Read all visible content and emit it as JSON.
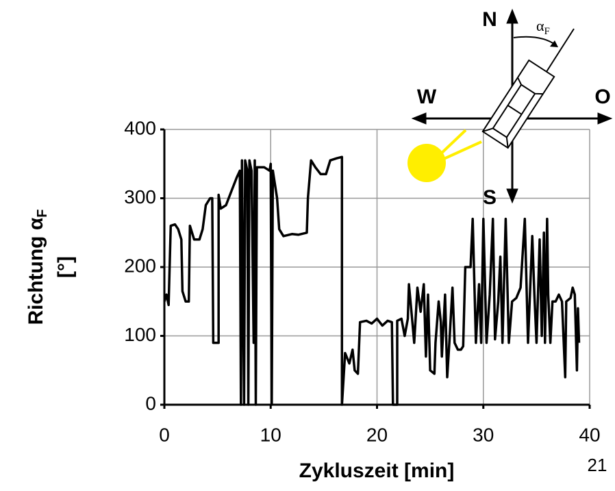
{
  "chart_data": {
    "type": "line",
    "ylabel": "Richtung α",
    "ylabel_sub": "F",
    "ylabel_unit": "[°]",
    "xlabel": "Zykluszeit [min]",
    "page_number": "21",
    "compass": {
      "north": "N",
      "west": "W",
      "east": "O",
      "south": "S",
      "angle": "α",
      "angle_sub": "F"
    },
    "color": "#000000",
    "grid": true,
    "xlim": [
      0,
      40
    ],
    "xticks": [
      0,
      10,
      20,
      30,
      40
    ],
    "ylim": [
      0,
      400
    ],
    "yticks": [
      0,
      100,
      200,
      300,
      400
    ],
    "x": [
      0,
      0.2,
      0.4,
      0.6,
      1.0,
      1.3,
      1.6,
      1.7,
      2.0,
      2.3,
      2.4,
      2.8,
      3.3,
      3.6,
      3.9,
      4.3,
      4.5,
      4.6,
      5.1,
      5.1,
      5.3,
      5.8,
      6.3,
      6.8,
      7.1,
      7.2,
      7.3,
      7.5,
      7.6,
      7.8,
      7.9,
      8.0,
      8.2,
      8.4,
      8.5,
      8.6,
      8.7,
      9.4,
      9.9,
      10.0,
      10.1,
      10.2,
      10.6,
      10.8,
      11.2,
      12.0,
      12.6,
      13.4,
      13.5,
      13.8,
      14.2,
      14.7,
      15.2,
      15.6,
      16.2,
      16.7,
      16.7,
      17.0,
      17.4,
      17.7,
      17.9,
      18.2,
      18.4,
      19.0,
      19.5,
      20.0,
      20.5,
      21.0,
      21.4,
      21.5,
      21.9,
      21.9,
      22.3,
      22.6,
      22.9,
      23.0,
      23.3,
      23.5,
      23.8,
      24.1,
      24.4,
      24.6,
      24.8,
      25.0,
      25.4,
      25.5,
      25.8,
      26.0,
      26.1,
      26.4,
      26.6,
      26.8,
      27.1,
      27.3,
      27.6,
      27.9,
      28.1,
      28.3,
      28.8,
      29.0,
      29.3,
      29.6,
      29.8,
      30.0,
      30.3,
      30.6,
      30.9,
      31.1,
      31.4,
      31.6,
      31.8,
      32.1,
      32.4,
      32.7,
      33.1,
      33.5,
      33.9,
      34.2,
      34.6,
      34.8,
      35.0,
      35.3,
      35.5,
      35.7,
      35.8,
      36.0,
      36.1,
      36.3,
      36.5,
      36.8,
      37.1,
      37.4,
      37.7,
      37.8,
      38.2,
      38.4,
      38.6,
      38.8,
      38.9,
      39.0
    ],
    "values": [
      150,
      160,
      145,
      260,
      262,
      255,
      240,
      165,
      150,
      150,
      260,
      240,
      240,
      255,
      290,
      300,
      300,
      90,
      90,
      305,
      285,
      290,
      310,
      330,
      340,
      0,
      355,
      0,
      355,
      340,
      0,
      355,
      340,
      90,
      355,
      0,
      345,
      345,
      340,
      350,
      0,
      340,
      300,
      255,
      245,
      248,
      247,
      250,
      300,
      355,
      345,
      335,
      335,
      355,
      358,
      360,
      0,
      75,
      60,
      80,
      50,
      45,
      120,
      122,
      118,
      125,
      115,
      122,
      120,
      0,
      0,
      122,
      125,
      100,
      125,
      175,
      125,
      90,
      170,
      135,
      175,
      70,
      160,
      50,
      45,
      90,
      150,
      120,
      70,
      160,
      40,
      90,
      170,
      90,
      80,
      80,
      85,
      200,
      200,
      270,
      90,
      175,
      90,
      270,
      90,
      160,
      270,
      95,
      150,
      215,
      90,
      270,
      90,
      150,
      155,
      170,
      270,
      90,
      245,
      160,
      90,
      240,
      100,
      250,
      90,
      270,
      160,
      90,
      150,
      150,
      160,
      150,
      40,
      150,
      155,
      170,
      160,
      50,
      140,
      90
    ]
  }
}
